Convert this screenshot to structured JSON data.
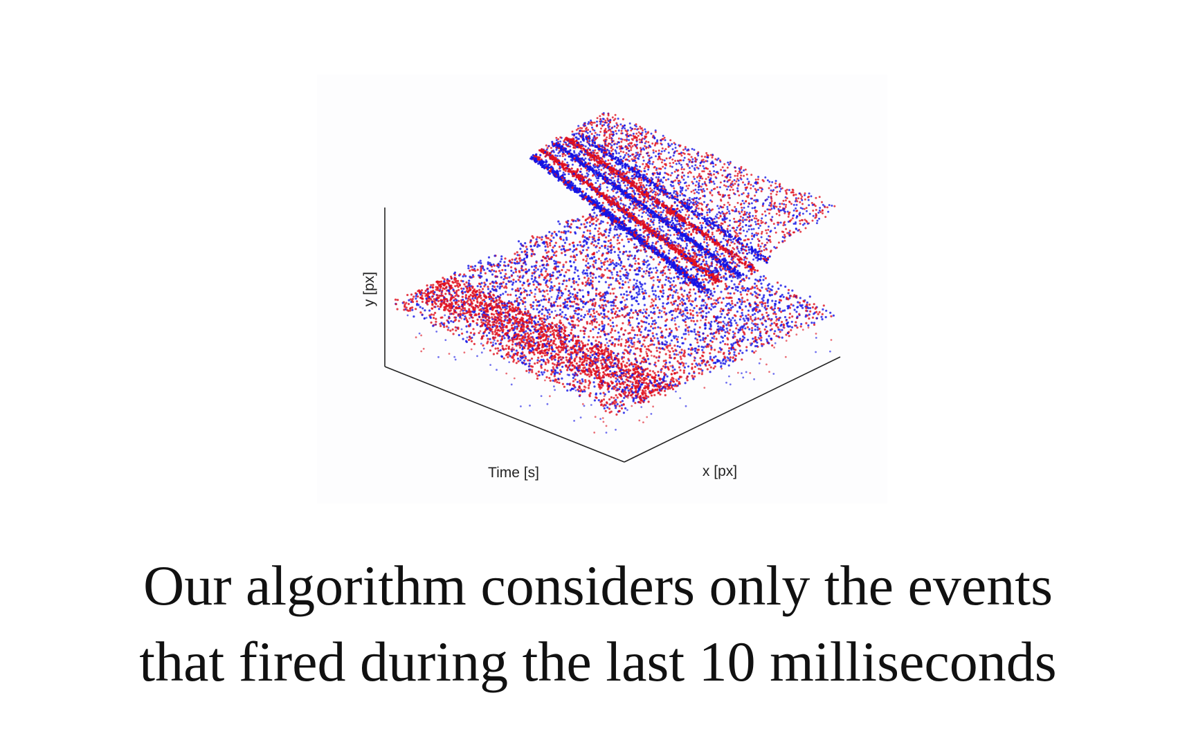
{
  "caption": {
    "line1": "Our algorithm considers only the events",
    "line2": "that fired during the last 10 milliseconds"
  },
  "chart_data": {
    "type": "scatter",
    "projection": "3d",
    "title": "",
    "xlabel": "Time [s]",
    "ylabel": "x [px]",
    "zlabel": "y [px]",
    "grid": false,
    "legend": "none",
    "series": [
      {
        "color": "#e0101e",
        "marker": "dot"
      },
      {
        "color": "#1414e6",
        "marker": "dot"
      }
    ],
    "colors": {
      "positive": "#e0101e",
      "negative": "#1414e6",
      "axes": "#222222"
    }
  }
}
